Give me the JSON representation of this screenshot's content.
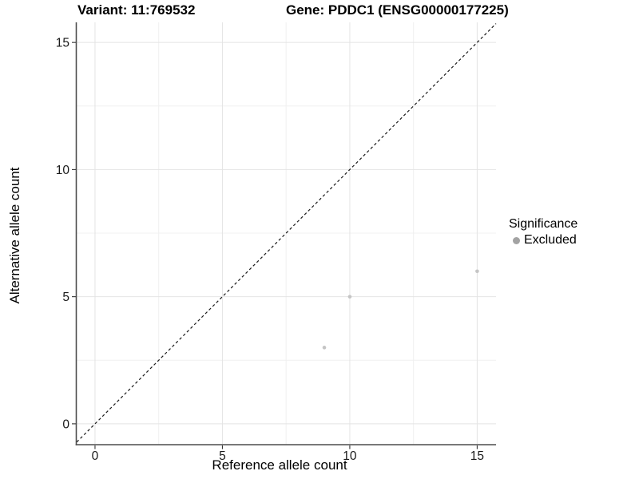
{
  "chart_data": {
    "type": "scatter",
    "title_left": "Variant: 11:769532",
    "title_right": "Gene: PDDC1 (ENSG00000177225)",
    "xlabel": "Reference allele count",
    "ylabel": "Alternative allele count",
    "points": [
      {
        "x": 9,
        "y": 3,
        "significance": "Excluded"
      },
      {
        "x": 10,
        "y": 5,
        "significance": "Excluded"
      },
      {
        "x": 15,
        "y": 6,
        "significance": "Excluded"
      }
    ],
    "x_ticks": [
      0,
      5,
      10,
      15
    ],
    "y_ticks": [
      0,
      5,
      10,
      15
    ],
    "x_minor_ticks": [
      2.5,
      7.5,
      12.5
    ],
    "y_minor_ticks": [
      2.5,
      7.5,
      12.5
    ],
    "xlim": [
      -0.72,
      15.74
    ],
    "ylim": [
      -0.82,
      15.79
    ],
    "diagonal_line": {
      "slope": 1,
      "intercept": 0,
      "style": "dashed"
    },
    "grid": true,
    "legend": {
      "position": "right",
      "title": "Significance",
      "items": [
        {
          "label": "Excluded"
        }
      ]
    },
    "colors": {
      "point": "#c5c5c5",
      "legend_key": "#a3a3a3",
      "grid_major": "#e4e4e4",
      "grid_minor": "#f0f0f0",
      "axis_line": "#4d4d4d",
      "tick_mark": "#333333",
      "tick_label": "#1a1a1a",
      "diagonal": "#1a1a1a"
    }
  }
}
